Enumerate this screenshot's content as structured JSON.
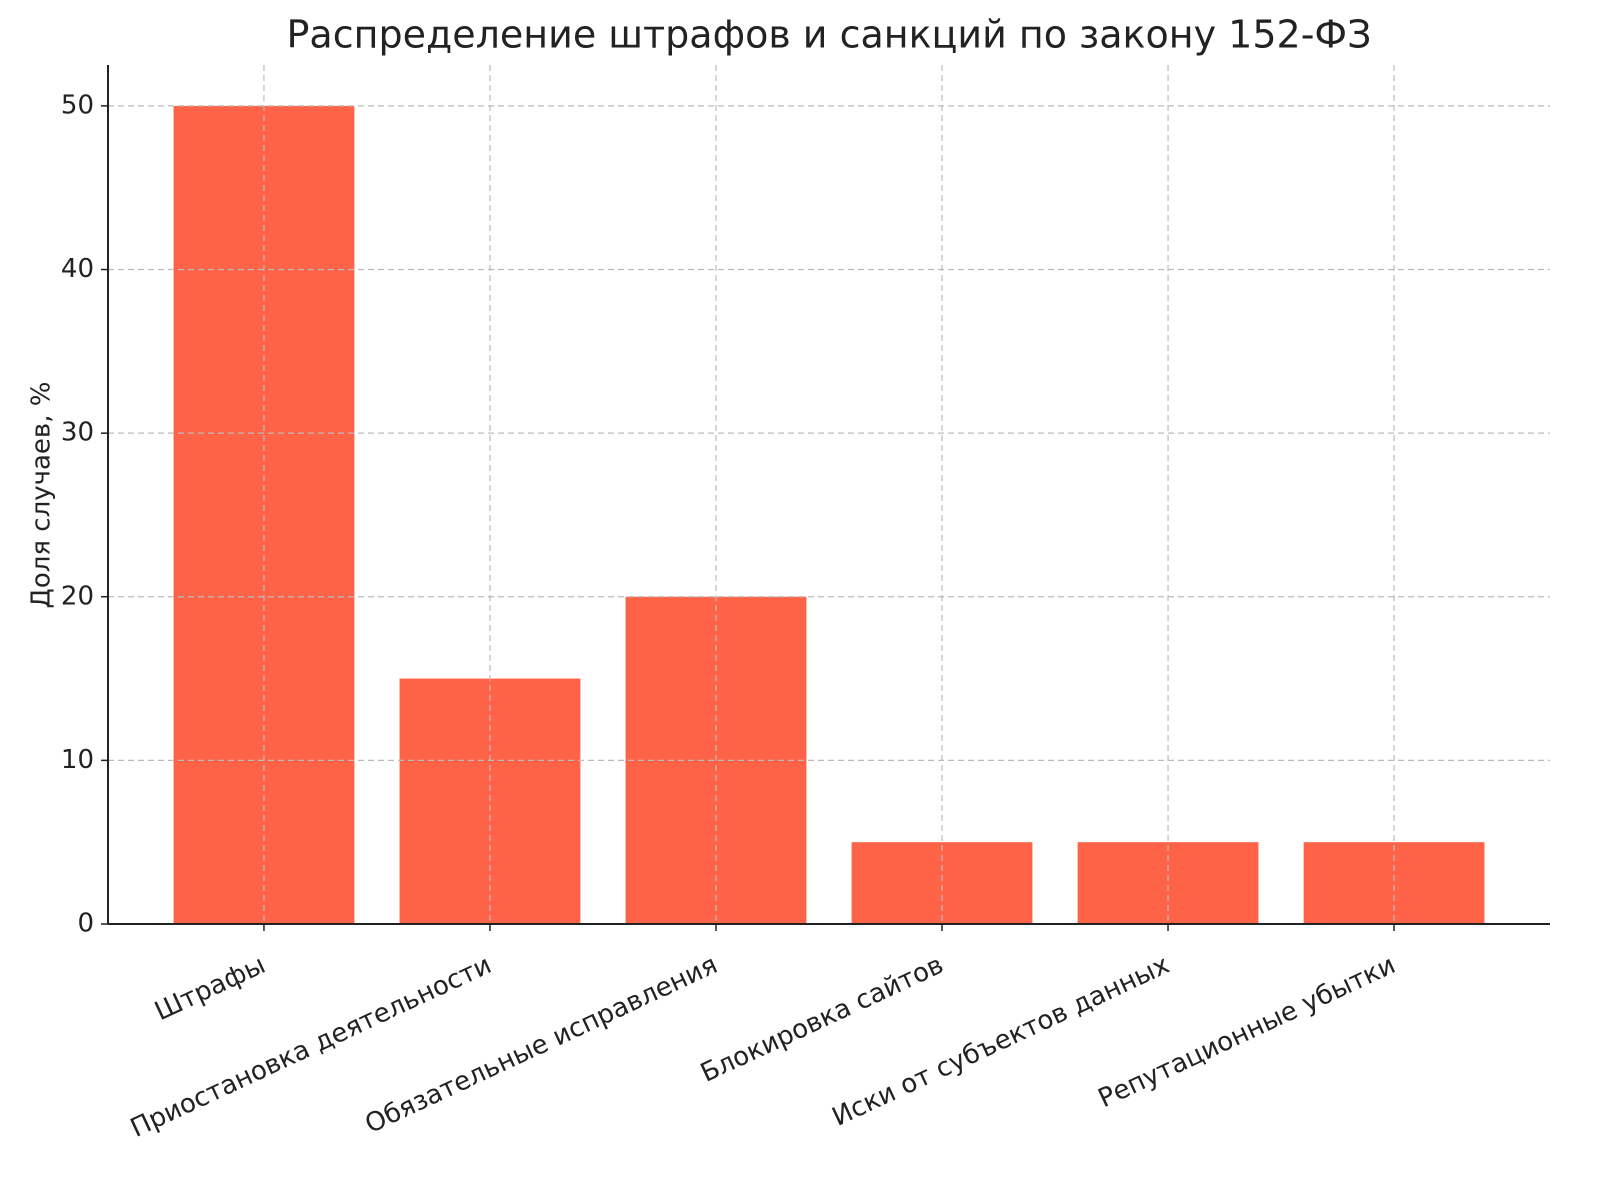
{
  "chart_data": {
    "type": "bar",
    "title": "Распределение штрафов и санкций по закону 152-ФЗ",
    "y_label": "Доля случаев, %",
    "categories": [
      "Штрафы",
      "Приостановка деятельности",
      "Обязательные исправления",
      "Блокировка сайтов",
      "Иски от субъектов данных",
      "Репутационные убытки"
    ],
    "values": [
      50,
      15,
      20,
      5,
      5,
      5
    ],
    "color": "#ff6347",
    "ylim": [
      0,
      52.5
    ],
    "yticks": [
      0,
      10,
      20,
      30,
      40,
      50
    ],
    "grid": true
  }
}
